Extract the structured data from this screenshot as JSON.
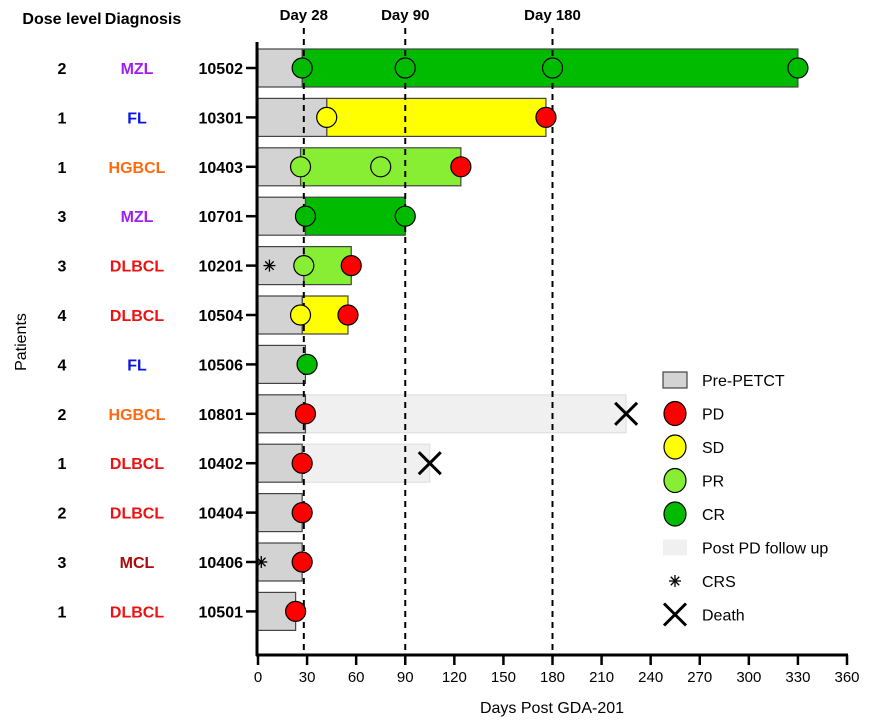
{
  "chart_data": {
    "type": "swimmer",
    "xlabel": "Days Post GDA-201",
    "ylabel": "Patients",
    "xlim": [
      0,
      360
    ],
    "xticks": [
      0,
      30,
      60,
      90,
      120,
      150,
      180,
      210,
      240,
      270,
      300,
      330,
      360
    ],
    "column_headers": {
      "dose": "Dose level",
      "diagnosis": "Diagnosis"
    },
    "reference_lines": [
      {
        "day": 28,
        "label": "Day 28"
      },
      {
        "day": 90,
        "label": "Day 90"
      },
      {
        "day": 180,
        "label": "Day 180"
      }
    ],
    "colors": {
      "Pre-PETCT": "#d3d3d3",
      "PD": "#ff0000",
      "SD": "#ffff00",
      "PR": "#88ee33",
      "CR": "#00bb00",
      "Post PD follow up": "#f0f0f0",
      "MZL": "#a020f0",
      "FL": "#0a14e6",
      "HGBCL": "#ff6a10",
      "DLBCL": "#ee1111",
      "MCL": "#aa0a0a"
    },
    "legend": {
      "position": "right",
      "items": [
        {
          "key": "Pre-PETCT",
          "shape": "bar",
          "label": "Pre-PETCT"
        },
        {
          "key": "PD",
          "shape": "circle",
          "label": "PD"
        },
        {
          "key": "SD",
          "shape": "circle",
          "label": "SD"
        },
        {
          "key": "PR",
          "shape": "circle",
          "label": "PR"
        },
        {
          "key": "CR",
          "shape": "circle",
          "label": "CR"
        },
        {
          "key": "Post PD follow up",
          "shape": "flat",
          "label": "Post PD follow up"
        },
        {
          "key": "CRS",
          "shape": "asterisk",
          "label": "CRS"
        },
        {
          "key": "Death",
          "shape": "cross",
          "label": "Death"
        }
      ]
    },
    "patients": [
      {
        "dose": "2",
        "diagnosis": "MZL",
        "id": "10502",
        "pre_end": 27,
        "response": "CR",
        "response_end": 330,
        "assessments": [
          {
            "day": 27,
            "type": "CR"
          },
          {
            "day": 90,
            "type": "CR"
          },
          {
            "day": 180,
            "type": "CR"
          },
          {
            "day": 330,
            "type": "CR"
          }
        ]
      },
      {
        "dose": "1",
        "diagnosis": "FL",
        "id": "10301",
        "pre_end": 42,
        "response": "SD",
        "response_end": 176,
        "assessments": [
          {
            "day": 42,
            "type": "SD"
          },
          {
            "day": 176,
            "type": "PD"
          }
        ]
      },
      {
        "dose": "1",
        "diagnosis": "HGBCL",
        "id": "10403",
        "pre_end": 26,
        "response": "PR",
        "response_end": 124,
        "assessments": [
          {
            "day": 26,
            "type": "PR"
          },
          {
            "day": 75,
            "type": "PR"
          },
          {
            "day": 124,
            "type": "PD"
          }
        ]
      },
      {
        "dose": "3",
        "diagnosis": "MZL",
        "id": "10701",
        "pre_end": 29,
        "response": "CR",
        "response_end": 90,
        "assessments": [
          {
            "day": 29,
            "type": "CR"
          },
          {
            "day": 90,
            "type": "CR"
          }
        ]
      },
      {
        "dose": "3",
        "diagnosis": "DLBCL",
        "id": "10201",
        "pre_end": 28,
        "response": "PR",
        "response_end": 57,
        "crs": 7,
        "assessments": [
          {
            "day": 28,
            "type": "PR"
          },
          {
            "day": 57,
            "type": "PD"
          }
        ]
      },
      {
        "dose": "4",
        "diagnosis": "DLBCL",
        "id": "10504",
        "pre_end": 27,
        "response": "SD",
        "response_end": 55,
        "assessments": [
          {
            "day": 26,
            "type": "SD"
          },
          {
            "day": 55,
            "type": "PD"
          }
        ]
      },
      {
        "dose": "4",
        "diagnosis": "FL",
        "id": "10506",
        "pre_end": 29,
        "assessments": [
          {
            "day": 30,
            "type": "CR"
          }
        ]
      },
      {
        "dose": "2",
        "diagnosis": "HGBCL",
        "id": "10801",
        "pre_end": 29,
        "follow_end": 225,
        "death": 225,
        "assessments": [
          {
            "day": 29,
            "type": "PD"
          }
        ]
      },
      {
        "dose": "1",
        "diagnosis": "DLBCL",
        "id": "10402",
        "pre_end": 27,
        "follow_end": 105,
        "death": 105,
        "assessments": [
          {
            "day": 27,
            "type": "PD"
          }
        ]
      },
      {
        "dose": "2",
        "diagnosis": "DLBCL",
        "id": "10404",
        "pre_end": 27,
        "assessments": [
          {
            "day": 27,
            "type": "PD"
          }
        ]
      },
      {
        "dose": "3",
        "diagnosis": "MCL",
        "id": "10406",
        "pre_end": 27,
        "crs": 2,
        "assessments": [
          {
            "day": 27,
            "type": "PD"
          }
        ]
      },
      {
        "dose": "1",
        "diagnosis": "DLBCL",
        "id": "10501",
        "pre_end": 23,
        "assessments": [
          {
            "day": 23,
            "type": "PD"
          }
        ]
      }
    ]
  }
}
